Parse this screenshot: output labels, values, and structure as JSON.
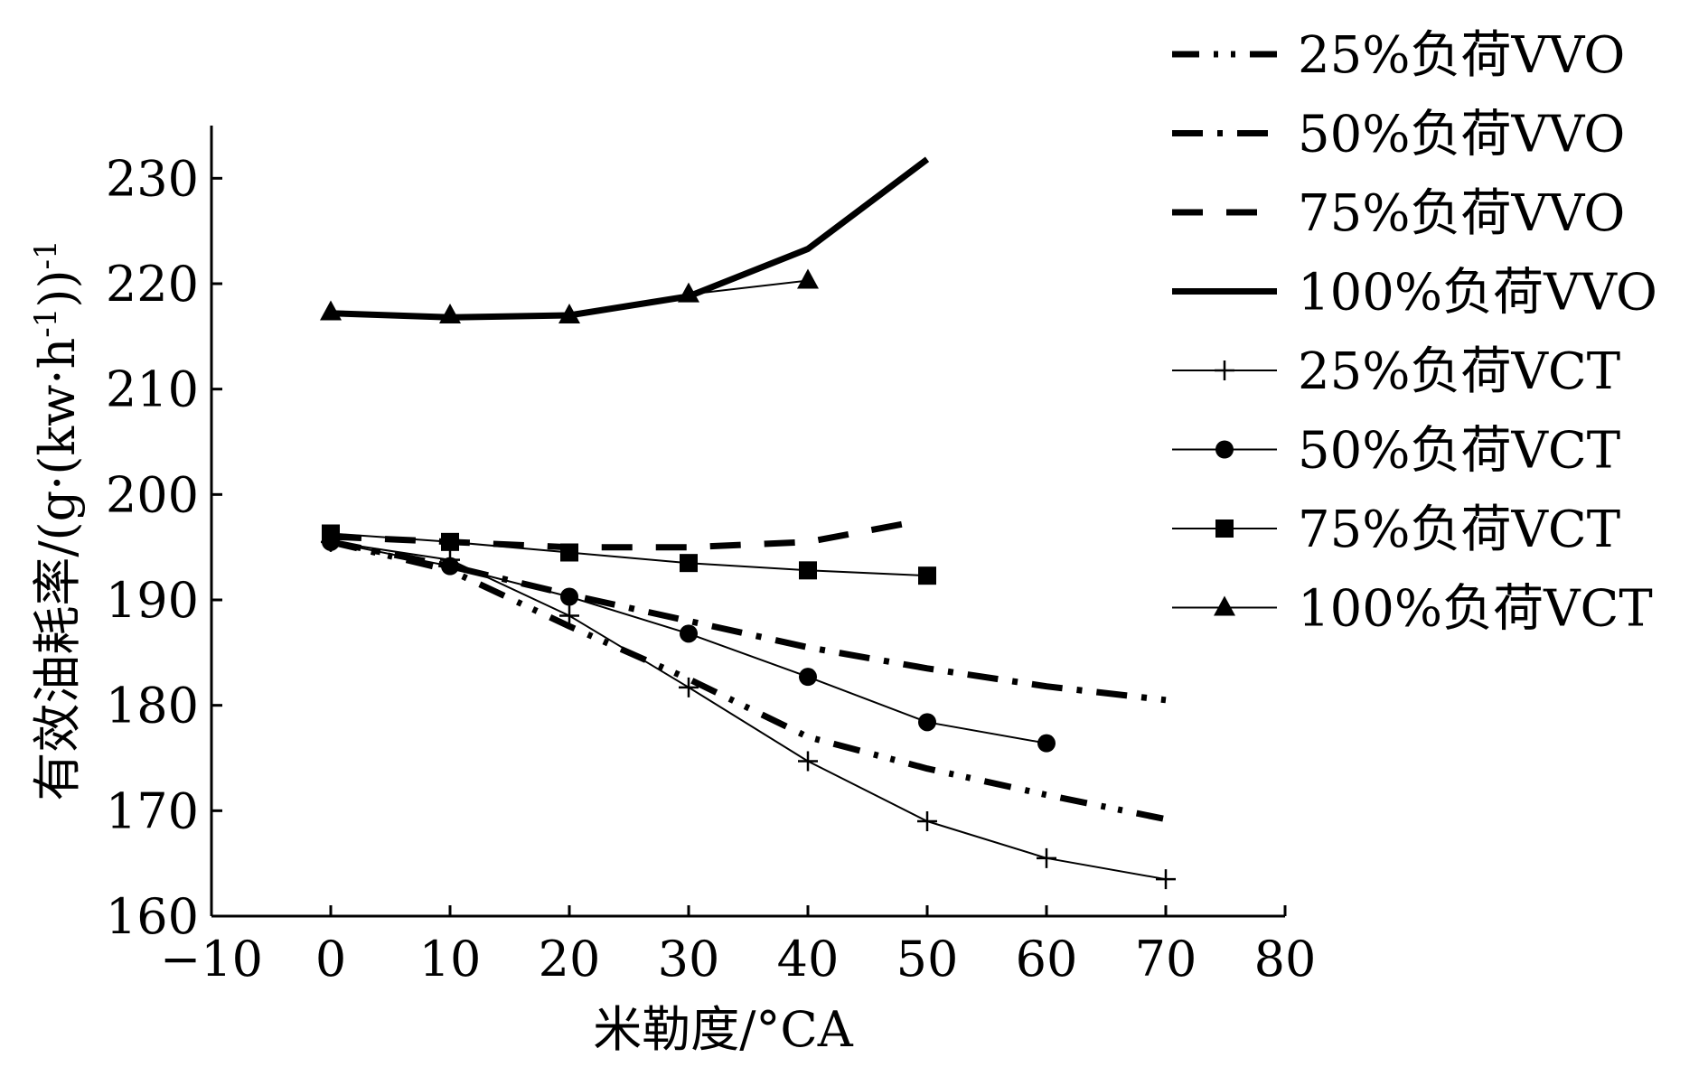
{
  "chart_data": {
    "type": "line",
    "title": "",
    "xlabel": "米勒度/°CA",
    "ylabel": "有效油耗率/(g·(kw·h",
    "ylabel_sup1": "-1",
    "ylabel_mid": "))",
    "ylabel_sup2": "-1",
    "xlim": [
      -10,
      80
    ],
    "ylim": [
      160,
      235
    ],
    "xticks": [
      -10,
      0,
      10,
      20,
      30,
      40,
      50,
      60,
      70,
      80
    ],
    "xtick_labels": [
      "−10",
      "0",
      "10",
      "20",
      "30",
      "40",
      "50",
      "60",
      "70",
      "80"
    ],
    "yticks": [
      160,
      170,
      180,
      190,
      200,
      210,
      220,
      230
    ],
    "ytick_labels": [
      "160",
      "170",
      "180",
      "190",
      "200",
      "210",
      "220",
      "230"
    ],
    "grid": false,
    "legend_position": "top-right, outside plot",
    "series": [
      {
        "name": "25%负荷VVO",
        "style": "dash-dot-dot",
        "weight": "heavy",
        "marker": "none",
        "x": [
          0,
          10,
          20,
          30,
          40,
          50,
          60,
          70
        ],
        "y": [
          195.5,
          192.8,
          187.5,
          182.5,
          177,
          174,
          171.5,
          169.2
        ]
      },
      {
        "name": "50%负荷VVO",
        "style": "dash-dot",
        "weight": "heavy",
        "marker": "none",
        "x": [
          0,
          10,
          20,
          30,
          40,
          50,
          60,
          70
        ],
        "y": [
          195.5,
          193.2,
          190.5,
          188,
          185.5,
          183.5,
          181.8,
          180.5
        ]
      },
      {
        "name": "75%负荷VVO",
        "style": "dash",
        "weight": "heavy",
        "marker": "none",
        "x": [
          0,
          10,
          20,
          30,
          40,
          48
        ],
        "y": [
          196,
          195.5,
          195,
          195,
          195.5,
          197.2
        ]
      },
      {
        "name": "100%负荷VVO",
        "style": "solid",
        "weight": "heavy",
        "marker": "none",
        "x": [
          0,
          10,
          20,
          30,
          40,
          50
        ],
        "y": [
          217.2,
          216.8,
          217,
          218.8,
          223.3,
          231.8
        ]
      },
      {
        "name": "25%负荷VCT",
        "style": "solid",
        "weight": "thin",
        "marker": "plus",
        "x": [
          0,
          10,
          20,
          30,
          40,
          50,
          60,
          70
        ],
        "y": [
          195.5,
          193.8,
          188.5,
          181.7,
          174.7,
          169,
          165.5,
          163.5
        ]
      },
      {
        "name": "50%负荷VCT",
        "style": "solid",
        "weight": "thin",
        "marker": "circle",
        "x": [
          0,
          10,
          20,
          30,
          40,
          50,
          60
        ],
        "y": [
          195.5,
          193.2,
          190.3,
          186.8,
          182.7,
          178.4,
          176.4
        ]
      },
      {
        "name": "75%负荷VCT",
        "style": "solid",
        "weight": "thin",
        "marker": "square",
        "x": [
          0,
          10,
          20,
          30,
          40,
          50
        ],
        "y": [
          196.3,
          195.5,
          194.5,
          193.5,
          192.8,
          192.3
        ]
      },
      {
        "name": "100%负荷VCT",
        "style": "solid",
        "weight": "thin",
        "marker": "triangle",
        "x": [
          0,
          10,
          20,
          30,
          40
        ],
        "y": [
          217.3,
          217,
          217,
          219,
          220.3
        ]
      }
    ]
  }
}
